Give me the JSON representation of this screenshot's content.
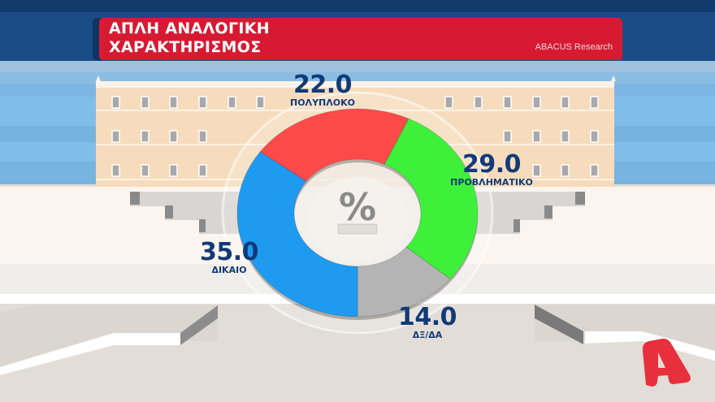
{
  "header": {
    "title_line1": "ΑΠΛΗ ΑΝΑΛΟΓΙΚΗ",
    "title_line2": "ΧΑΡΑΚΤΗΡΙΣΜΟΣ",
    "source": "ABACUS Research"
  },
  "center_symbol": "%",
  "colors": {
    "title_bar": "#d71a32",
    "title_bar_shadow": "#0f3563",
    "label_text": "#123a78",
    "logo": "#e8303c"
  },
  "chart_data": {
    "type": "pie",
    "variant": "donut",
    "title": "ΑΠΛΗ ΑΝΑΛΟΓΙΚΗ — ΧΑΡΑΚΤΗΡΙΣΜΟΣ",
    "unit": "%",
    "source": "ABACUS Research",
    "categories": [
      "ΠΟΛΥΠΛΟΚΟ",
      "ΠΡΟΒΛΗΜΑΤΙΚΟ",
      "ΔΞ/ΔΑ",
      "ΔΙΚΑΙΟ"
    ],
    "values": [
      22.0,
      29.0,
      14.0,
      35.0
    ],
    "value_labels": [
      "22.0",
      "29.0",
      "14.0",
      "35.0"
    ],
    "slice_colors": [
      "#ff4a4a",
      "#3ef03a",
      "#b4b4b4",
      "#1e9bf0"
    ],
    "start_angle_deg": -54,
    "direction": "clockwise",
    "legend": "none (labels placed next to slices)"
  },
  "labels": [
    {
      "value": "22.0",
      "category": "ΠΟΛΥΠΛΟΚΟ"
    },
    {
      "value": "29.0",
      "category": "ΠΡΟΒΛΗΜΑΤΙΚΟ"
    },
    {
      "value": "14.0",
      "category": "ΔΞ/ΔΑ"
    },
    {
      "value": "35.0",
      "category": "ΔΙΚΑΙΟ"
    }
  ],
  "logo": {
    "glyph": "A",
    "name": "channel-logo"
  }
}
